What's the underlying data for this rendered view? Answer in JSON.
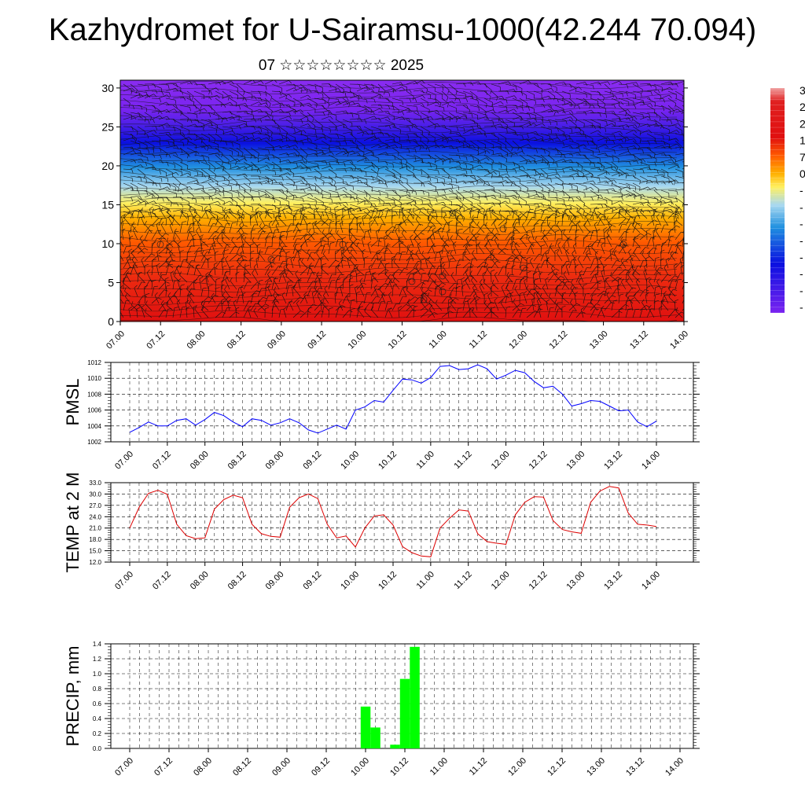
{
  "title": "Kazhydromet for U-Sairamsu-1000(42.244 70.094)",
  "subtitle": "07 ☆☆☆☆☆☆☆☆ 2025",
  "chart_data": [
    {
      "type": "heatmap",
      "title": "",
      "xlabel": "",
      "ylabel": "",
      "x_tick_labels": [
        "07.00",
        "07.12",
        "08.00",
        "08.12",
        "09.00",
        "09.12",
        "10.00",
        "10.12",
        "11.00",
        "11.12",
        "12.00",
        "12.12",
        "13.00",
        "13.12",
        "14.00"
      ],
      "ylim": [
        0,
        31
      ],
      "y_ticks": [
        0,
        5,
        10,
        15,
        20,
        25,
        30
      ],
      "colorbar_labels": [
        "3",
        "2",
        "2",
        "1",
        "7",
        "0",
        "-",
        "-",
        "-",
        "-",
        "-",
        "-",
        "-",
        "-"
      ],
      "colors": [
        "#e01010",
        "#ff5a00",
        "#ffb000",
        "#fff060",
        "#a8d8f0",
        "#2090e0",
        "#0a10e0",
        "#7a24f0"
      ],
      "overlay": "wind barbs"
    },
    {
      "type": "line",
      "ylabel": "PMSL",
      "ylim": [
        1002,
        1012
      ],
      "y_ticks": [
        "1002",
        "1004",
        "1006",
        "1008",
        "1010",
        "1012"
      ],
      "x_tick_labels": [
        "07.00",
        "07.12",
        "08.00",
        "08.12",
        "09.00",
        "09.12",
        "10.00",
        "10.12",
        "11.00",
        "11.12",
        "12.00",
        "12.12",
        "13.00",
        "13.12",
        "14.00"
      ],
      "color": "#0000ff",
      "values": [
        1003.2,
        1003.8,
        1004.5,
        1004.0,
        1004.0,
        1004.7,
        1004.9,
        1004.1,
        1004.8,
        1005.7,
        1005.3,
        1004.5,
        1003.9,
        1004.9,
        1004.7,
        1004.1,
        1004.4,
        1004.9,
        1004.4,
        1003.5,
        1003.1,
        1003.6,
        1004.1,
        1003.6,
        1006.0,
        1006.4,
        1007.2,
        1007.0,
        1008.5,
        1009.9,
        1009.8,
        1009.4,
        1010.1,
        1011.5,
        1011.6,
        1011.1,
        1011.2,
        1011.7,
        1011.2,
        1009.9,
        1010.4,
        1011.0,
        1010.7,
        1009.6,
        1008.8,
        1009.0,
        1008.0,
        1006.5,
        1006.8,
        1007.2,
        1007.1,
        1006.5,
        1005.9,
        1006.0,
        1004.5,
        1003.9,
        1004.6
      ]
    },
    {
      "type": "line",
      "ylabel": "TEMP at 2 M",
      "ylim": [
        12,
        33
      ],
      "y_ticks": [
        "12.0",
        "15.0",
        "18.0",
        "21.0",
        "24.0",
        "27.0",
        "30.0",
        "33.0"
      ],
      "x_tick_labels": [
        "07.00",
        "07.12",
        "08.00",
        "08.12",
        "09.00",
        "09.12",
        "10.00",
        "10.12",
        "11.00",
        "11.12",
        "12.00",
        "12.12",
        "13.00",
        "13.12",
        "14.00"
      ],
      "color": "#dd0000",
      "values": [
        21.0,
        26.5,
        30.2,
        31.0,
        29.9,
        22.0,
        19.0,
        18.2,
        18.4,
        26.0,
        28.5,
        29.7,
        29.0,
        22.0,
        19.5,
        18.8,
        18.6,
        26.5,
        29.0,
        30.0,
        28.8,
        22.0,
        18.4,
        18.9,
        16.0,
        21.0,
        24.2,
        24.5,
        21.8,
        16.1,
        14.5,
        13.6,
        13.4,
        21.0,
        23.6,
        25.8,
        25.5,
        19.5,
        17.4,
        17.0,
        16.7,
        24.5,
        27.8,
        29.3,
        29.2,
        23.0,
        20.6,
        20.0,
        19.6,
        27.8,
        30.8,
        32.0,
        31.6,
        25.0,
        22.0,
        21.8,
        21.4
      ]
    },
    {
      "type": "bar",
      "ylabel": "PRECIP, mm",
      "ylim": [
        0,
        1.4
      ],
      "y_ticks": [
        "0.0",
        "0.2",
        "0.4",
        "0.6",
        "0.8",
        "1.0",
        "1.2",
        "1.4"
      ],
      "x_tick_labels": [
        "07.00",
        "07.12",
        "08.00",
        "08.12",
        "09.00",
        "09.12",
        "10.00",
        "10.12",
        "11.00",
        "11.12",
        "12.00",
        "12.12",
        "13.00",
        "13.12",
        "14.00"
      ],
      "color": "#00ff00",
      "values": [
        0,
        0,
        0,
        0,
        0,
        0,
        0,
        0,
        0,
        0,
        0,
        0,
        0,
        0,
        0,
        0,
        0,
        0,
        0,
        0,
        0,
        0,
        0,
        0,
        0.56,
        0.28,
        0,
        0.05,
        0.93,
        1.36,
        0,
        0,
        0,
        0,
        0,
        0,
        0,
        0,
        0,
        0,
        0,
        0,
        0,
        0,
        0,
        0,
        0,
        0,
        0,
        0,
        0,
        0,
        0,
        0,
        0,
        0,
        0
      ]
    }
  ]
}
